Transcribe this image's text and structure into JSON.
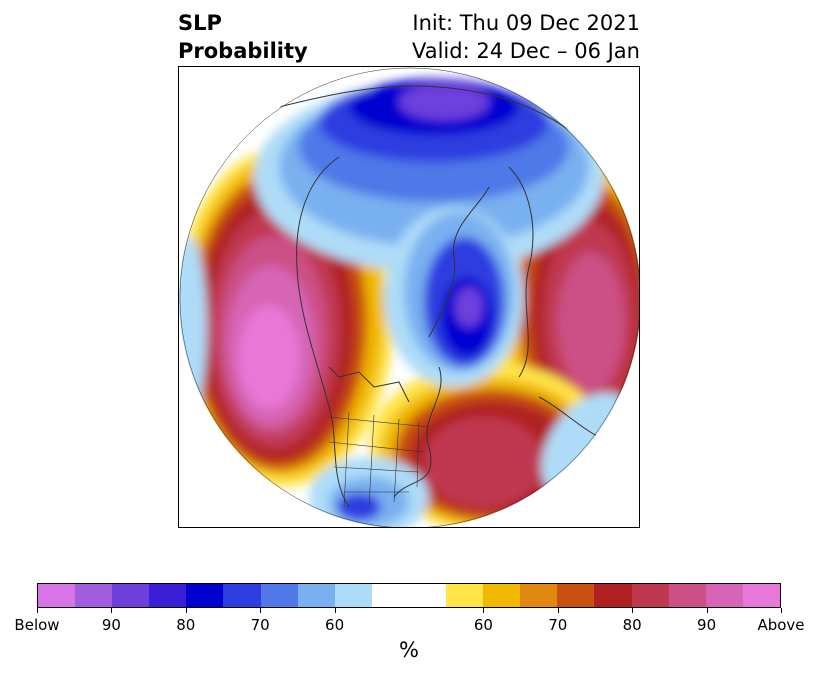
{
  "title": {
    "variable": "SLP",
    "product": "Probability",
    "init": "Init: Thu 09 Dec 2021",
    "valid": "Valid: 24 Dec – 06 Jan"
  },
  "colorbar": {
    "colors": [
      "#d875e6",
      "#a05de0",
      "#6e3fdd",
      "#3a1fd6",
      "#0000d0",
      "#2e3de0",
      "#5078e8",
      "#79b0f0",
      "#aedcf8",
      "#ffffff",
      "#ffffff",
      "#ffe44a",
      "#f0b800",
      "#e08810",
      "#c85010",
      "#b02020",
      "#c03850",
      "#cc4f85",
      "#d765b5",
      "#e878d8"
    ],
    "tick_labels": [
      "Below",
      "90",
      "80",
      "70",
      "60",
      "60",
      "70",
      "80",
      "90",
      "Above"
    ],
    "unit": "%"
  },
  "map": {
    "projection": "north-polar-stereographic",
    "region": "Northern Hemisphere"
  }
}
